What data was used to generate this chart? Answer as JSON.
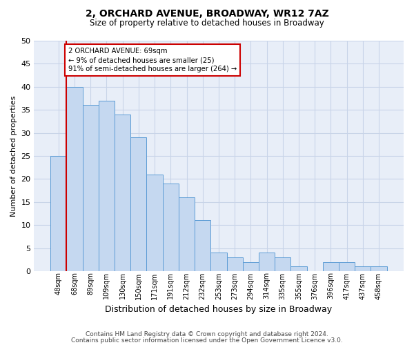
{
  "title1": "2, ORCHARD AVENUE, BROADWAY, WR12 7AZ",
  "title2": "Size of property relative to detached houses in Broadway",
  "xlabel": "Distribution of detached houses by size in Broadway",
  "ylabel": "Number of detached properties",
  "categories": [
    "48sqm",
    "68sqm",
    "89sqm",
    "109sqm",
    "130sqm",
    "150sqm",
    "171sqm",
    "191sqm",
    "212sqm",
    "232sqm",
    "253sqm",
    "273sqm",
    "294sqm",
    "314sqm",
    "335sqm",
    "355sqm",
    "376sqm",
    "396sqm",
    "417sqm",
    "437sqm",
    "458sqm"
  ],
  "values": [
    25,
    40,
    36,
    37,
    34,
    29,
    21,
    19,
    16,
    11,
    4,
    3,
    2,
    4,
    3,
    1,
    0,
    2,
    2,
    1,
    1
  ],
  "bar_color": "#c5d8f0",
  "bar_edge_color": "#5b9bd5",
  "annotation_text": "2 ORCHARD AVENUE: 69sqm\n← 9% of detached houses are smaller (25)\n91% of semi-detached houses are larger (264) →",
  "annotation_box_color": "#ffffff",
  "annotation_box_edge": "#cc0000",
  "redline_color": "#cc0000",
  "grid_color": "#c8d4e8",
  "bg_color": "#e8eef8",
  "ylim": [
    0,
    50
  ],
  "yticks": [
    0,
    5,
    10,
    15,
    20,
    25,
    30,
    35,
    40,
    45,
    50
  ],
  "footer1": "Contains HM Land Registry data © Crown copyright and database right 2024.",
  "footer2": "Contains public sector information licensed under the Open Government Licence v3.0."
}
